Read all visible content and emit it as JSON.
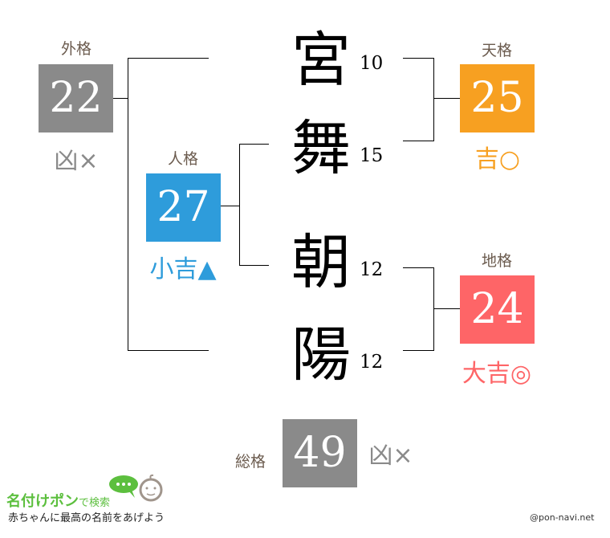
{
  "name_chars": [
    {
      "char": "宮",
      "strokes": "10"
    },
    {
      "char": "舞",
      "strokes": "15"
    },
    {
      "char": "朝",
      "strokes": "12"
    },
    {
      "char": "陽",
      "strokes": "12"
    }
  ],
  "gaikaku": {
    "label": "外格",
    "value": "22",
    "result": "凶×",
    "color": "#8a8a8a"
  },
  "jinkaku": {
    "label": "人格",
    "value": "27",
    "result": "小吉▲",
    "color": "#2e9cdb"
  },
  "tenkaku": {
    "label": "天格",
    "value": "25",
    "result": "吉○",
    "color": "#f7a021"
  },
  "chikaku": {
    "label": "地格",
    "value": "24",
    "result": "大吉◎",
    "color": "#fe6567"
  },
  "soukaku": {
    "label": "総格",
    "value": "49",
    "result": "凶×",
    "color": "#8a8a8a"
  },
  "logo": {
    "brand": "名付けポン",
    "suffix": "で検索",
    "tagline": "赤ちゃんに最高の名前をあげよう"
  },
  "credit": "@pon-navi.net"
}
